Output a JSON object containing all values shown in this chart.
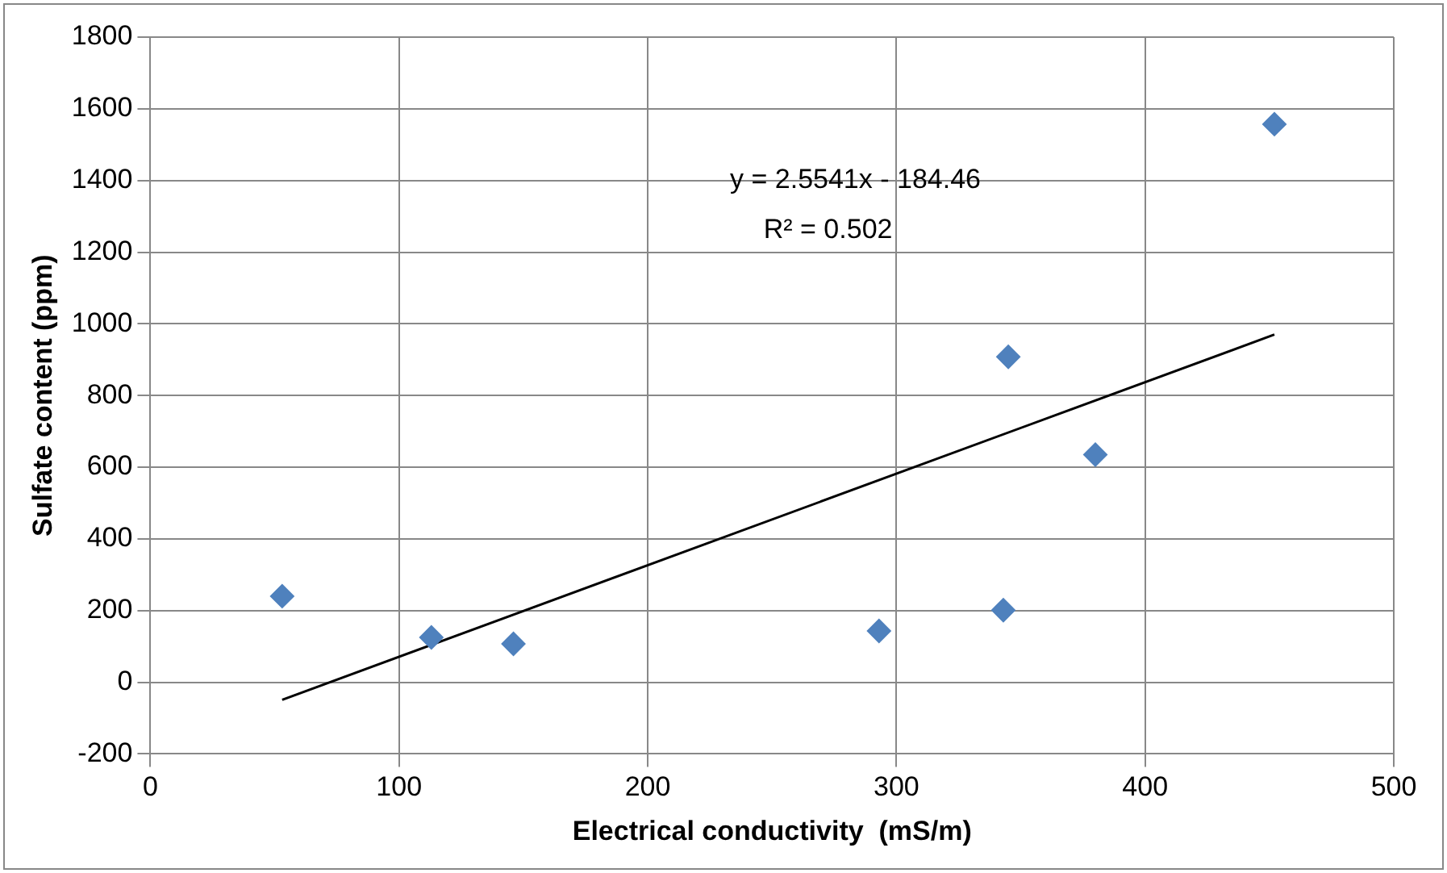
{
  "chart_data": {
    "type": "scatter",
    "xlabel": "Electrical conductivity  (mS/m)",
    "ylabel": "Sulfate content (ppm)",
    "xlim": [
      0,
      500
    ],
    "xticks": [
      0,
      100,
      200,
      300,
      400,
      500
    ],
    "ylim": [
      -200,
      1800
    ],
    "yticks": [
      -200,
      0,
      200,
      400,
      600,
      800,
      1000,
      1200,
      1400,
      1600,
      1800
    ],
    "grid": true,
    "legend": false,
    "marker": "diamond",
    "series": [
      {
        "color": "#4f81bd",
        "x": [
          53,
          113,
          146,
          293,
          343,
          345,
          380,
          452
        ],
        "values": [
          240,
          125,
          107,
          143,
          201,
          908,
          635,
          1557
        ]
      },
      {
        "type": "line",
        "color": "#000000",
        "marker": "none",
        "x": [
          53,
          452
        ],
        "values": [
          -49,
          970
        ]
      }
    ],
    "annotations": [
      "y = 2.5541x - 184.46",
      "R² = 0.502"
    ]
  }
}
